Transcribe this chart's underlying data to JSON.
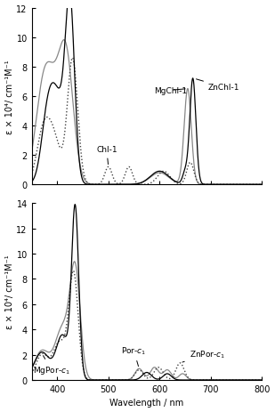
{
  "upper": {
    "ylim": [
      0,
      12
    ],
    "yticks": [
      0,
      2,
      4,
      6,
      8,
      10,
      12
    ],
    "ylabel": "ε × 10⁴/ cm⁻¹M⁻¹",
    "xlim": [
      350,
      800
    ],
    "xticks": [
      400,
      500,
      600,
      700,
      800
    ]
  },
  "lower": {
    "ylim": [
      0,
      14
    ],
    "yticks": [
      0,
      2,
      4,
      6,
      8,
      10,
      12,
      14
    ],
    "ylabel": "ε × 10⁴/ cm⁻¹M⁻¹",
    "xlabel": "Wavelength / nm",
    "xlim": [
      350,
      800
    ],
    "xticks": [
      400,
      500,
      600,
      700,
      800
    ]
  }
}
